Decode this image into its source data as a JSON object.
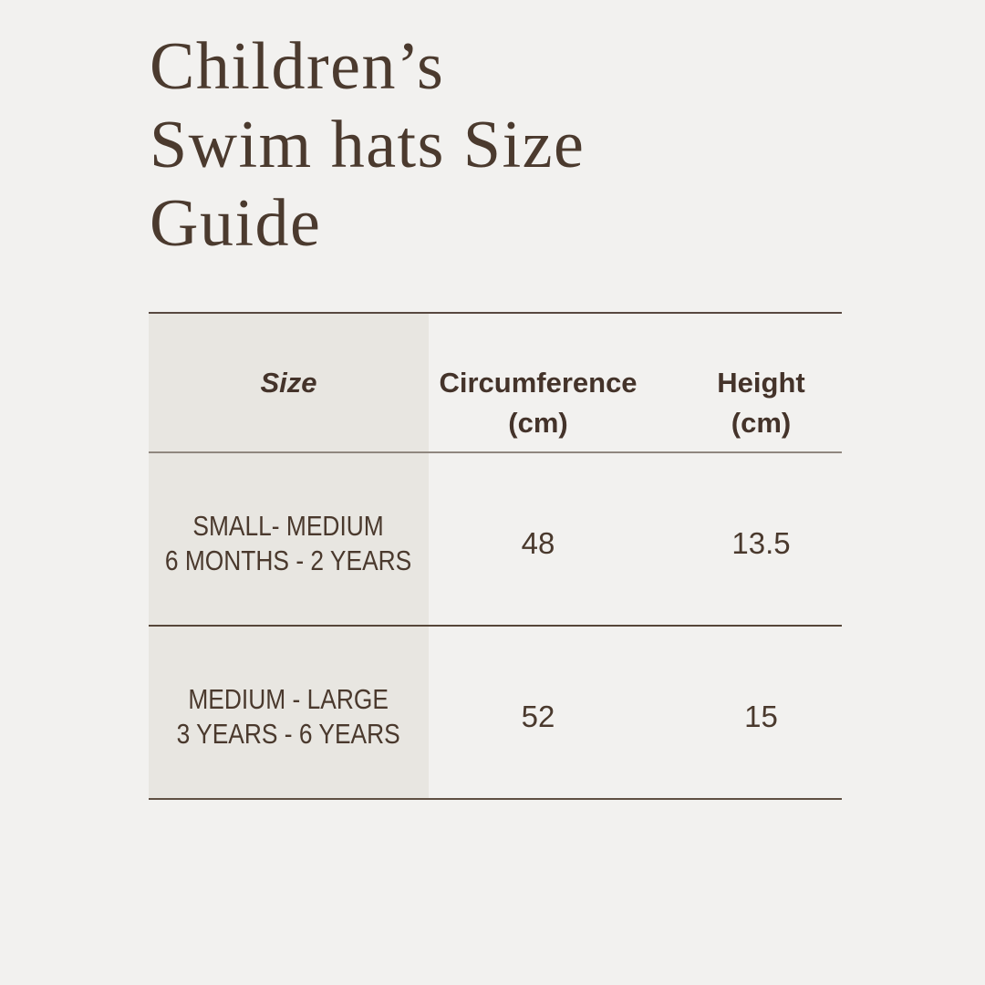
{
  "page": {
    "background_color": "#f2f1ef",
    "shaded_column_color": "#e8e6e1",
    "text_color": "#4a392d",
    "title_color": "#4b3a2e",
    "line_color": "#584840"
  },
  "title": {
    "lines": [
      "Children’s",
      "Swim hats Size",
      "Guide"
    ]
  },
  "table": {
    "columns": [
      {
        "label": "Size",
        "sub": ""
      },
      {
        "label": "Circumference",
        "sub": "(cm)"
      },
      {
        "label": "Height",
        "sub": "(cm)"
      }
    ],
    "rows": [
      {
        "size_line1": "SMALL- MEDIUM",
        "size_line2": "6 MONTHS - 2 YEARS",
        "circumference": "48",
        "height": "13.5"
      },
      {
        "size_line1": "MEDIUM - LARGE",
        "size_line2": "3 YEARS - 6 YEARS",
        "circumference": "52",
        "height": "15"
      }
    ]
  }
}
